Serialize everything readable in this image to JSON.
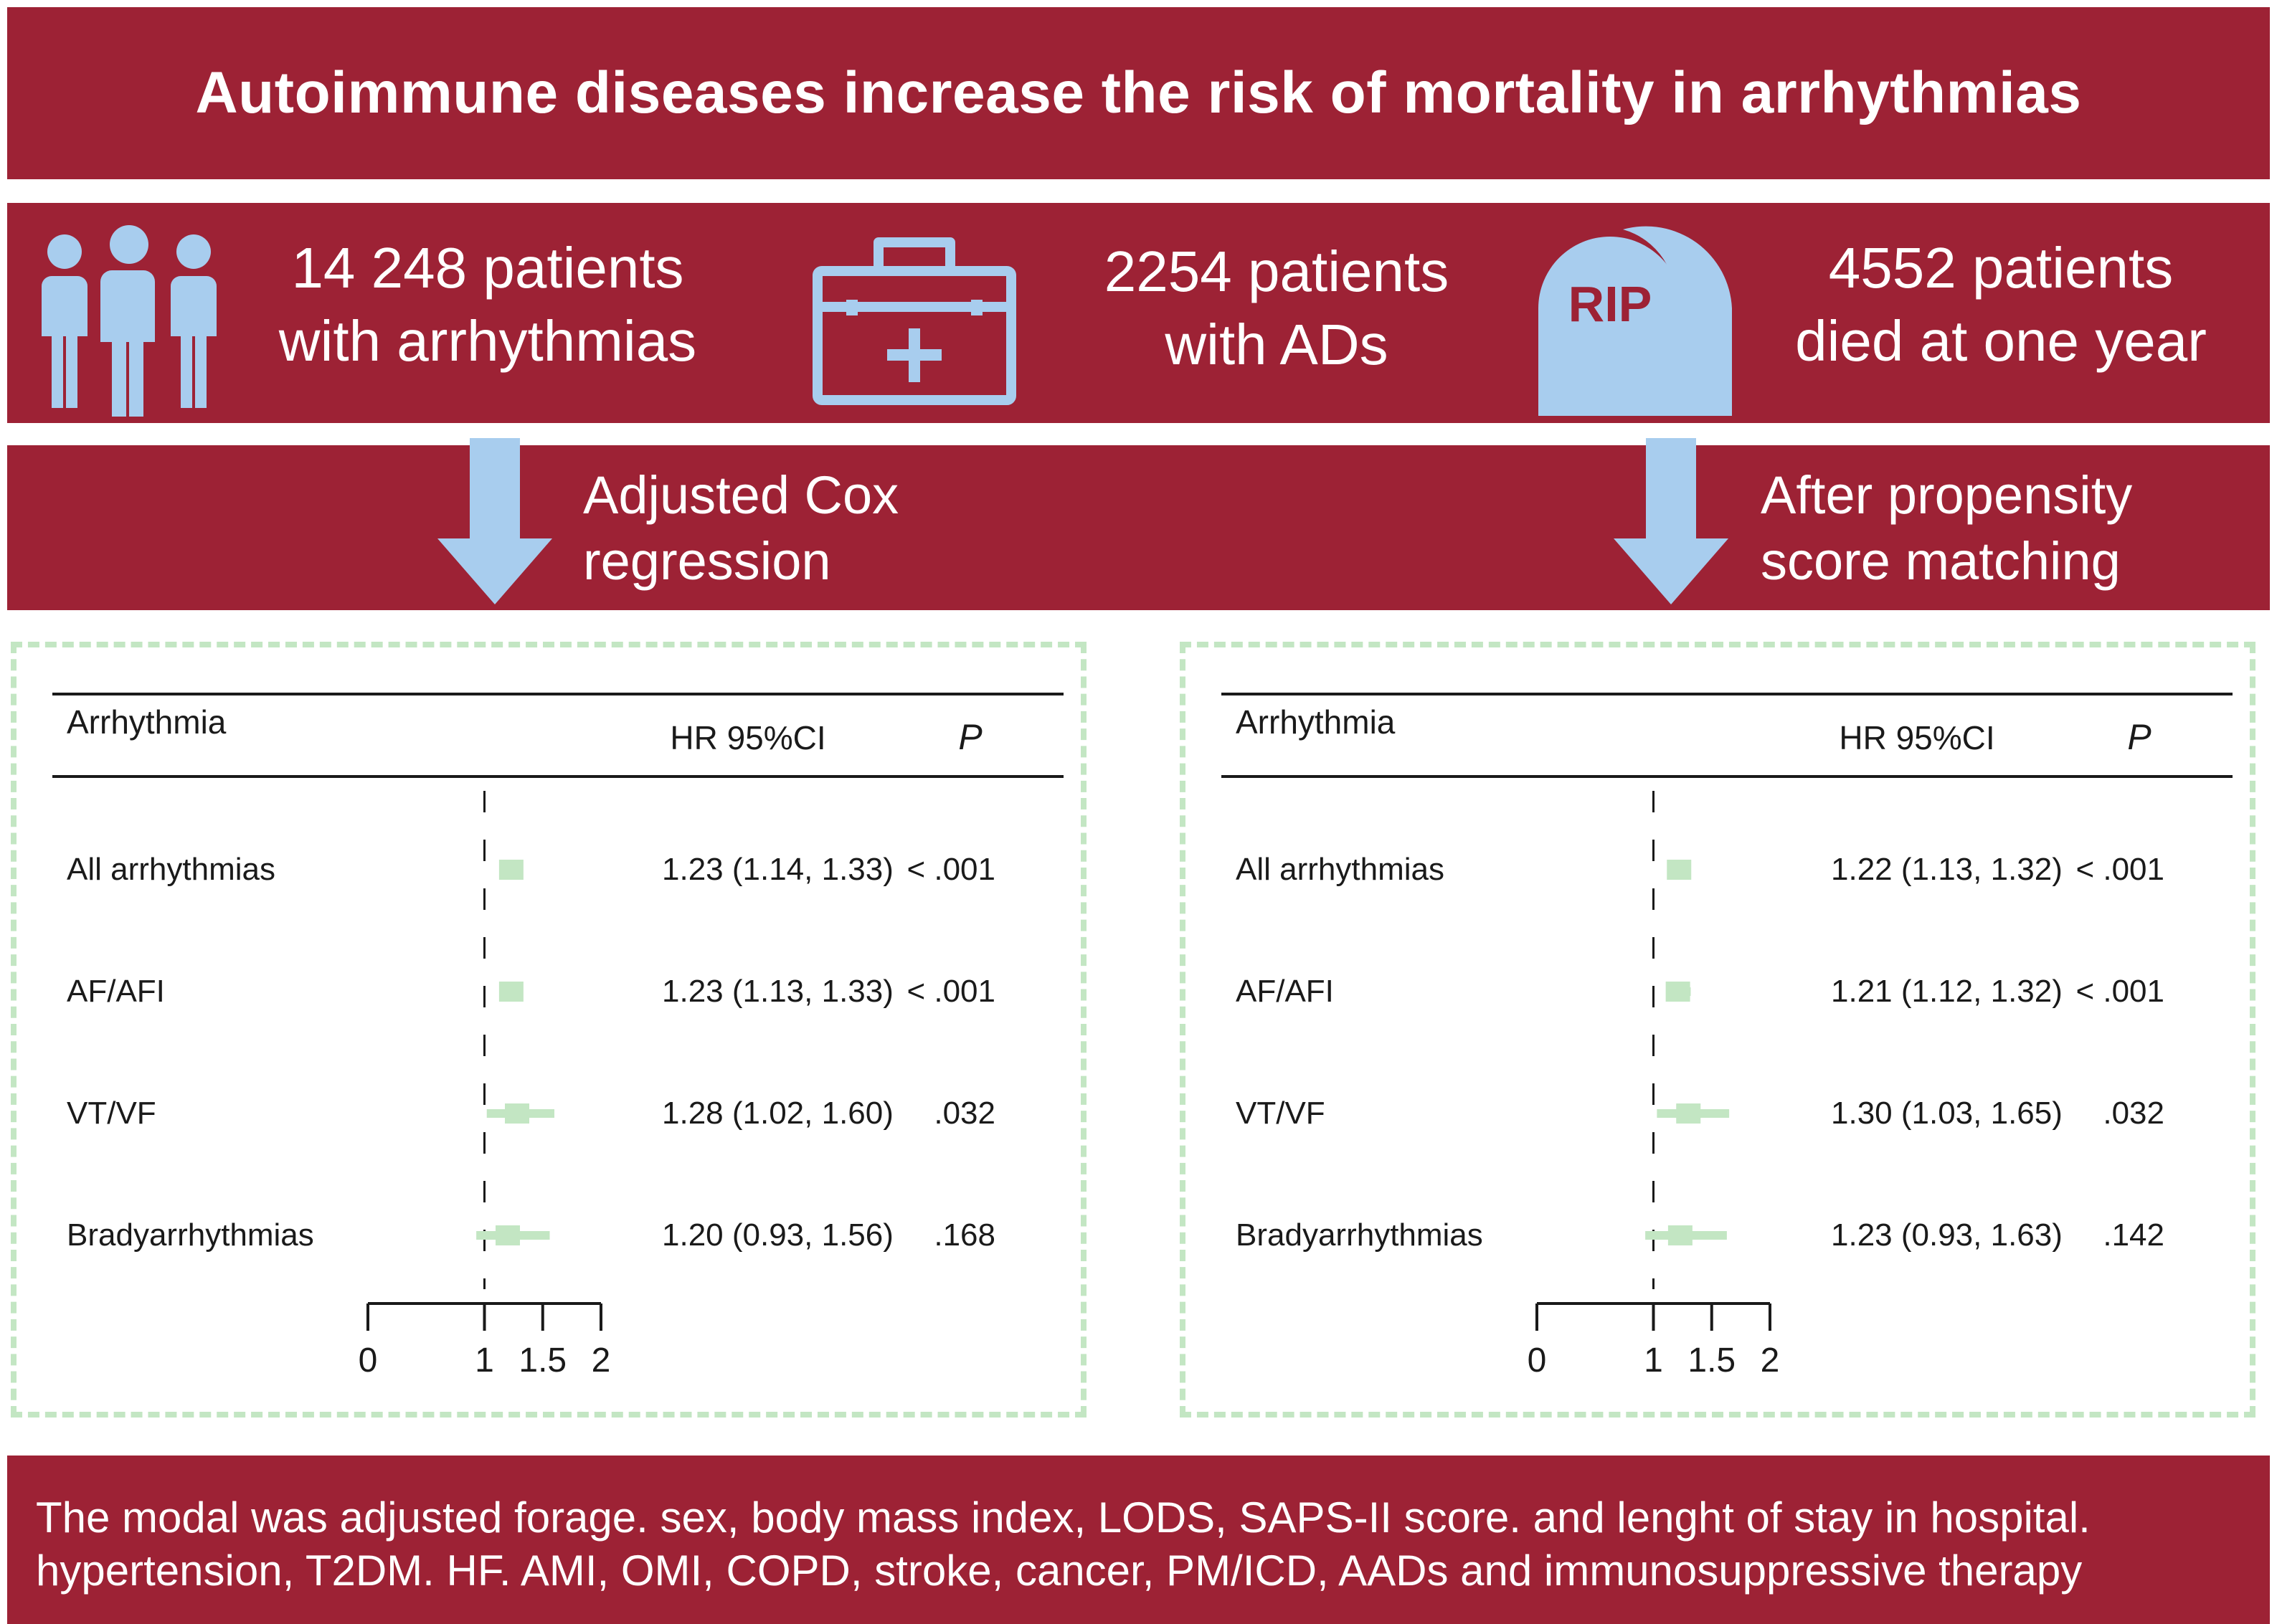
{
  "title": "Autoimmune diseases increase the risk of mortality in arrhythmias",
  "stats": [
    {
      "line1": "14 248 patients",
      "line2": "with arrhythmias",
      "icon": "people-icon"
    },
    {
      "line1": "2254 patients",
      "line2": "with ADs",
      "icon": "medical-kit-icon"
    },
    {
      "line1": "4552 patients",
      "line2": "died at one year",
      "icon": "tombstone-icon",
      "icon_text": "RIP"
    }
  ],
  "methods": [
    {
      "line1": "Adjusted Cox",
      "line2": "regression"
    },
    {
      "line1": "After propensity",
      "line2": "score matching"
    }
  ],
  "colors": {
    "band": "#9d2235",
    "icon": "#a8cdee",
    "marker": "#c3e6c3",
    "text": "#1a1a1a"
  },
  "chart_data": [
    {
      "type": "forest",
      "title": "Adjusted Cox regression",
      "headers": {
        "label": "Arrhythmia",
        "estimate": "HR 95%CI",
        "p": "P"
      },
      "rows": [
        {
          "label": "All arrhythmias",
          "hr": 1.23,
          "lo": 1.14,
          "hi": 1.33,
          "text": "1.23 (1.14, 1.33)",
          "p": "< .001"
        },
        {
          "label": "AF/AFI",
          "hr": 1.23,
          "lo": 1.13,
          "hi": 1.33,
          "text": "1.23 (1.13, 1.33)",
          "p": "< .001"
        },
        {
          "label": "VT/VF",
          "hr": 1.28,
          "lo": 1.02,
          "hi": 1.6,
          "text": "1.28 (1.02, 1.60)",
          "p": ".032"
        },
        {
          "label": "Bradyarrhythmias",
          "hr": 1.2,
          "lo": 0.93,
          "hi": 1.56,
          "text": "1.20 (0.93, 1.56)",
          "p": ".168"
        }
      ],
      "xlim": [
        0,
        2
      ],
      "xticks": [
        0,
        1,
        1.5,
        2
      ],
      "xtick_labels": [
        "0",
        "1",
        "1.5",
        "2"
      ],
      "reference_line": 1
    },
    {
      "type": "forest",
      "title": "After propensity score matching",
      "headers": {
        "label": "Arrhythmia",
        "estimate": "HR 95%CI",
        "p": "P"
      },
      "rows": [
        {
          "label": "All arrhythmias",
          "hr": 1.22,
          "lo": 1.13,
          "hi": 1.32,
          "text": "1.22 (1.13, 1.32)",
          "p": "< .001"
        },
        {
          "label": "AF/AFI",
          "hr": 1.21,
          "lo": 1.12,
          "hi": 1.32,
          "text": "1.21 (1.12, 1.32)",
          "p": "< .001"
        },
        {
          "label": "VT/VF",
          "hr": 1.3,
          "lo": 1.03,
          "hi": 1.65,
          "text": "1.30 (1.03, 1.65)",
          "p": ".032"
        },
        {
          "label": "Bradyarrhythmias",
          "hr": 1.23,
          "lo": 0.93,
          "hi": 1.63,
          "text": "1.23 (0.93, 1.63)",
          "p": ".142"
        }
      ],
      "xlim": [
        0,
        2
      ],
      "xticks": [
        0,
        1,
        1.5,
        2
      ],
      "xtick_labels": [
        "0",
        "1",
        "1.5",
        "2"
      ],
      "reference_line": 1
    }
  ],
  "footer": {
    "line1": "The modal was adjusted forage. sex, body mass index, LODS, SAPS-II score. and lenght of stay in hospital.",
    "line2": "hypertension, T2DM. HF. AMI, OMI, COPD, stroke, cancer, PM/ICD, AADs and immunosuppressive therapy"
  }
}
